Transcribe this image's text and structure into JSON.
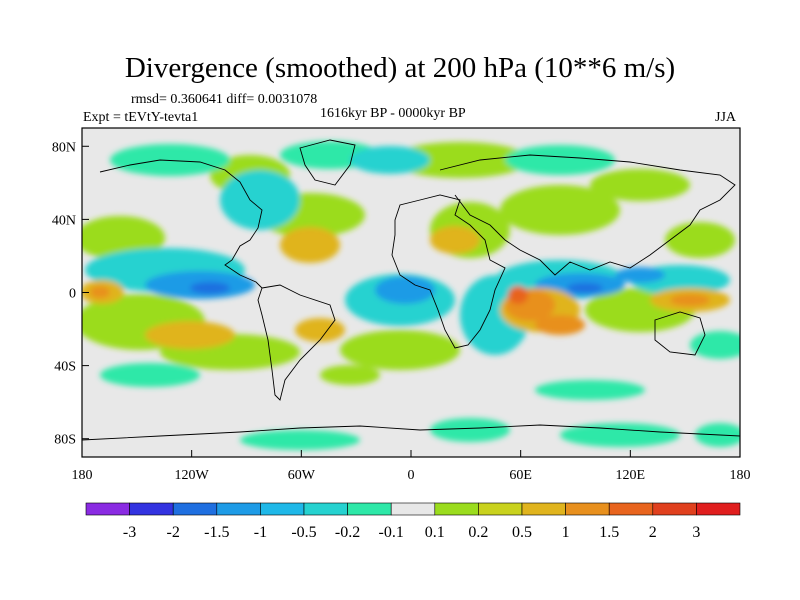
{
  "title": "Divergence (smoothed) at 200 hPa (10**6 m/s)",
  "stats": "rmsd= 0.360641 diff= 0.0031078",
  "experiment": "Expt = tEVtY-tevta1",
  "period": "1616kyr BP - 0000kyr BP",
  "season": "JJA",
  "map": {
    "lon_range": [
      -180,
      180
    ],
    "lat_range": [
      -90,
      90
    ],
    "lon_tick_labels": [
      "180",
      "120W",
      "60W",
      "0",
      "60E",
      "120E",
      "180"
    ],
    "lat_tick_labels": [
      "80N",
      "40N",
      "0",
      "40S",
      "80S"
    ],
    "background_color": "#e8e8e8"
  },
  "colorbar": {
    "colors": [
      "#8a2be2",
      "#3333e0",
      "#1f6fe0",
      "#1e9be6",
      "#1fb8e8",
      "#26d2d0",
      "#2ee8a8",
      "#e8e8e8",
      "#9bdc1e",
      "#c9d21e",
      "#e0b41e",
      "#e8901e",
      "#e8641e",
      "#e0401e",
      "#e01e1e"
    ],
    "labels": [
      "-3",
      "-2",
      "-1.5",
      "-1",
      "-0.5",
      "-0.2",
      "-0.1",
      "0.1",
      "0.2",
      "0.5",
      "1",
      "1.5",
      "2",
      "3"
    ]
  }
}
